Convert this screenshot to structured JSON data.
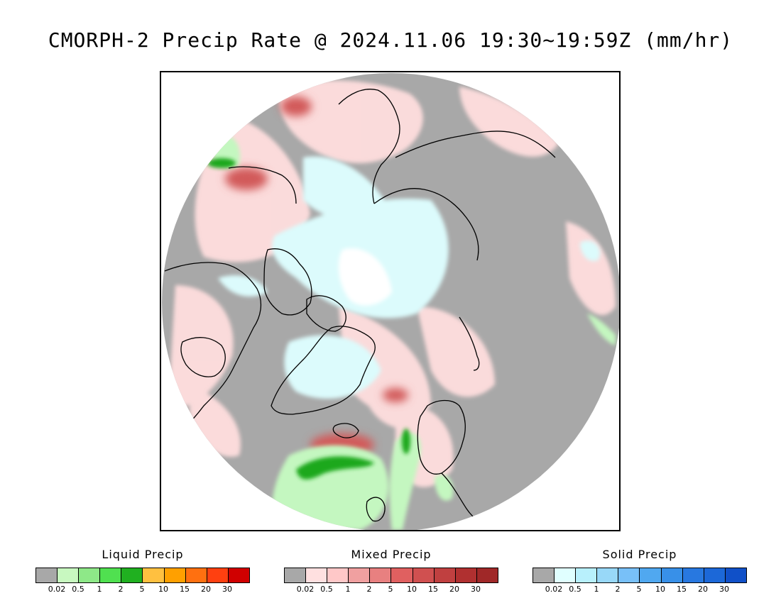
{
  "title": "CMORPH-2 Precip Rate @ 2024.11.06 19:30~19:59Z (mm/hr)",
  "map": {
    "colors": {
      "background_gray": "#a8a8a8",
      "mixed_light": "#ffdede",
      "mixed_medium": "#f5b5b5",
      "mixed_heavy": "#d25a5a",
      "liquid_light": "#c4f7c0",
      "liquid_heavy": "#1fa81f",
      "solid_light": "#dcfbfc",
      "ice_white": "#ffffff",
      "coastline": "#000000"
    }
  },
  "legends": [
    {
      "title": "Liquid Precip",
      "colors": [
        "#a8a8a8",
        "#c8f8c0",
        "#8ee888",
        "#50e050",
        "#20b020",
        "#ffc040",
        "#ffa000",
        "#ff7010",
        "#ff4010",
        "#d00000"
      ],
      "ticks": [
        "0.02",
        "0.5",
        "1",
        "2",
        "5",
        "10",
        "15",
        "20",
        "30"
      ]
    },
    {
      "title": "Mixed Precip",
      "colors": [
        "#a8a8a8",
        "#ffe0e0",
        "#ffc8c8",
        "#f0a0a0",
        "#e88080",
        "#e06060",
        "#d05050",
        "#c04040",
        "#b03030",
        "#a02828"
      ],
      "ticks": [
        "0.02",
        "0.5",
        "1",
        "2",
        "5",
        "10",
        "15",
        "20",
        "30"
      ]
    },
    {
      "title": "Solid Precip",
      "colors": [
        "#a8a8a8",
        "#e0ffff",
        "#b8f0fc",
        "#98d8f8",
        "#78c0f8",
        "#50a8f0",
        "#3890e8",
        "#2878e0",
        "#1c68d8",
        "#1050c8"
      ],
      "ticks": [
        "0.02",
        "0.5",
        "1",
        "2",
        "5",
        "10",
        "15",
        "20",
        "30"
      ]
    }
  ]
}
